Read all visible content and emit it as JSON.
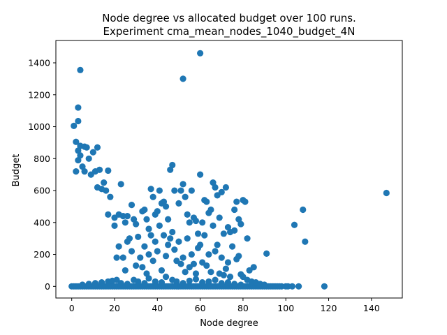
{
  "chart_data": {
    "type": "scatter",
    "title": "Node degree vs allocated budget over 100 runs.",
    "subtitle": "Experiment cma_mean_nodes_1040_budget_4N",
    "xlabel": "Node degree",
    "ylabel": "Budget",
    "xlim": [
      -7.4,
      154.4
    ],
    "ylim": [
      -73,
      1540
    ],
    "xticks": [
      0,
      20,
      40,
      60,
      80,
      100,
      120,
      140
    ],
    "yticks": [
      0,
      200,
      400,
      600,
      800,
      1000,
      1200,
      1400
    ],
    "grid": false,
    "legend": "none",
    "marker_color": "#1f77b4",
    "series": [
      {
        "points": [
          [
            0,
            0
          ],
          [
            1,
            0
          ],
          [
            2,
            0
          ],
          [
            3,
            0
          ],
          [
            4,
            0
          ],
          [
            5,
            0
          ],
          [
            6,
            0
          ],
          [
            7,
            0
          ],
          [
            8,
            0
          ],
          [
            9,
            0
          ],
          [
            10,
            0
          ],
          [
            11,
            0
          ],
          [
            12,
            0
          ],
          [
            13,
            0
          ],
          [
            14,
            0
          ],
          [
            15,
            0
          ],
          [
            16,
            0
          ],
          [
            17,
            0
          ],
          [
            18,
            0
          ],
          [
            19,
            0
          ],
          [
            20,
            0
          ],
          [
            21,
            0
          ],
          [
            22,
            0
          ],
          [
            23,
            0
          ],
          [
            24,
            0
          ],
          [
            25,
            0
          ],
          [
            26,
            0
          ],
          [
            27,
            0
          ],
          [
            28,
            0
          ],
          [
            29,
            0
          ],
          [
            30,
            0
          ],
          [
            31,
            0
          ],
          [
            32,
            0
          ],
          [
            33,
            0
          ],
          [
            34,
            0
          ],
          [
            35,
            0
          ],
          [
            36,
            0
          ],
          [
            37,
            0
          ],
          [
            38,
            0
          ],
          [
            39,
            0
          ],
          [
            40,
            0
          ],
          [
            41,
            0
          ],
          [
            42,
            0
          ],
          [
            43,
            0
          ],
          [
            44,
            0
          ],
          [
            45,
            0
          ],
          [
            46,
            0
          ],
          [
            47,
            0
          ],
          [
            48,
            0
          ],
          [
            49,
            0
          ],
          [
            50,
            0
          ],
          [
            51,
            0
          ],
          [
            52,
            0
          ],
          [
            53,
            0
          ],
          [
            54,
            0
          ],
          [
            55,
            0
          ],
          [
            56,
            0
          ],
          [
            57,
            0
          ],
          [
            58,
            0
          ],
          [
            59,
            0
          ],
          [
            60,
            0
          ],
          [
            61,
            0
          ],
          [
            62,
            0
          ],
          [
            63,
            0
          ],
          [
            64,
            0
          ],
          [
            65,
            0
          ],
          [
            66,
            0
          ],
          [
            67,
            0
          ],
          [
            68,
            0
          ],
          [
            69,
            0
          ],
          [
            70,
            0
          ],
          [
            71,
            0
          ],
          [
            72,
            0
          ],
          [
            73,
            0
          ],
          [
            74,
            0
          ],
          [
            75,
            0
          ],
          [
            76,
            0
          ],
          [
            77,
            0
          ],
          [
            78,
            0
          ],
          [
            79,
            0
          ],
          [
            80,
            0
          ],
          [
            81,
            0
          ],
          [
            82,
            0
          ],
          [
            83,
            0
          ],
          [
            84,
            0
          ],
          [
            85,
            0
          ],
          [
            86,
            0
          ],
          [
            87,
            0
          ],
          [
            88,
            0
          ],
          [
            89,
            0
          ],
          [
            90,
            0
          ],
          [
            91,
            0
          ],
          [
            92,
            0
          ],
          [
            93,
            0
          ],
          [
            94,
            0
          ],
          [
            95,
            0
          ],
          [
            96,
            0
          ],
          [
            97,
            0
          ],
          [
            98,
            0
          ],
          [
            100,
            0
          ],
          [
            101,
            0
          ],
          [
            103,
            0
          ],
          [
            106,
            0
          ],
          [
            118,
            0
          ],
          [
            1,
            1005
          ],
          [
            2,
            905
          ],
          [
            3,
            1035
          ],
          [
            3,
            1120
          ],
          [
            4,
            1355
          ],
          [
            4,
            880
          ],
          [
            6,
            875
          ],
          [
            7,
            870
          ],
          [
            10,
            840
          ],
          [
            12,
            870
          ],
          [
            3,
            850
          ],
          [
            3,
            790
          ],
          [
            5,
            750
          ],
          [
            8,
            800
          ],
          [
            4,
            820
          ],
          [
            2,
            720
          ],
          [
            6,
            720
          ],
          [
            9,
            700
          ],
          [
            11,
            720
          ],
          [
            13,
            730
          ],
          [
            17,
            725
          ],
          [
            15,
            650
          ],
          [
            14,
            610
          ],
          [
            12,
            620
          ],
          [
            16,
            600
          ],
          [
            18,
            560
          ],
          [
            17,
            450
          ],
          [
            20,
            430
          ],
          [
            23,
            640
          ],
          [
            22,
            450
          ],
          [
            24,
            440
          ],
          [
            25,
            400
          ],
          [
            26,
            440
          ],
          [
            28,
            510
          ],
          [
            29,
            420
          ],
          [
            27,
            300
          ],
          [
            30,
            390
          ],
          [
            31,
            310
          ],
          [
            33,
            470
          ],
          [
            34,
            480
          ],
          [
            35,
            420
          ],
          [
            36,
            360
          ],
          [
            37,
            610
          ],
          [
            38,
            560
          ],
          [
            39,
            450
          ],
          [
            40,
            470
          ],
          [
            41,
            600
          ],
          [
            42,
            520
          ],
          [
            43,
            530
          ],
          [
            44,
            500
          ],
          [
            45,
            420
          ],
          [
            46,
            730
          ],
          [
            47,
            760
          ],
          [
            48,
            600
          ],
          [
            50,
            520
          ],
          [
            51,
            600
          ],
          [
            52,
            640
          ],
          [
            53,
            560
          ],
          [
            54,
            450
          ],
          [
            55,
            400
          ],
          [
            56,
            600
          ],
          [
            57,
            430
          ],
          [
            58,
            410
          ],
          [
            59,
            330
          ],
          [
            60,
            700
          ],
          [
            60,
            260
          ],
          [
            61,
            400
          ],
          [
            62,
            540
          ],
          [
            63,
            530
          ],
          [
            64,
            460
          ],
          [
            65,
            480
          ],
          [
            66,
            650
          ],
          [
            67,
            620
          ],
          [
            68,
            570
          ],
          [
            69,
            430
          ],
          [
            70,
            590
          ],
          [
            71,
            330
          ],
          [
            72,
            620
          ],
          [
            73,
            370
          ],
          [
            74,
            340
          ],
          [
            75,
            250
          ],
          [
            76,
            480
          ],
          [
            77,
            530
          ],
          [
            78,
            420
          ],
          [
            79,
            390
          ],
          [
            80,
            540
          ],
          [
            81,
            530
          ],
          [
            82,
            300
          ],
          [
            83,
            100
          ],
          [
            85,
            120
          ],
          [
            91,
            205
          ],
          [
            104,
            385
          ],
          [
            108,
            480
          ],
          [
            109,
            280
          ],
          [
            147,
            585
          ],
          [
            52,
            1300
          ],
          [
            60,
            1460
          ],
          [
            20,
            380
          ],
          [
            21,
            180
          ],
          [
            22,
            250
          ],
          [
            24,
            180
          ],
          [
            25,
            100
          ],
          [
            26,
            280
          ],
          [
            28,
            220
          ],
          [
            30,
            130
          ],
          [
            32,
            180
          ],
          [
            33,
            120
          ],
          [
            34,
            250
          ],
          [
            35,
            80
          ],
          [
            36,
            200
          ],
          [
            37,
            320
          ],
          [
            38,
            160
          ],
          [
            39,
            280
          ],
          [
            40,
            220
          ],
          [
            41,
            380
          ],
          [
            42,
            100
          ],
          [
            43,
            320
          ],
          [
            44,
            190
          ],
          [
            45,
            260
          ],
          [
            46,
            300
          ],
          [
            47,
            340
          ],
          [
            48,
            230
          ],
          [
            49,
            160
          ],
          [
            50,
            280
          ],
          [
            51,
            140
          ],
          [
            52,
            180
          ],
          [
            53,
            90
          ],
          [
            54,
            300
          ],
          [
            55,
            120
          ],
          [
            56,
            200
          ],
          [
            57,
            140
          ],
          [
            58,
            80
          ],
          [
            59,
            240
          ],
          [
            61,
            150
          ],
          [
            62,
            320
          ],
          [
            63,
            130
          ],
          [
            64,
            200
          ],
          [
            65,
            90
          ],
          [
            66,
            380
          ],
          [
            67,
            220
          ],
          [
            68,
            260
          ],
          [
            69,
            80
          ],
          [
            70,
            180
          ],
          [
            71,
            70
          ],
          [
            72,
            110
          ],
          [
            73,
            150
          ],
          [
            74,
            60
          ],
          [
            76,
            350
          ],
          [
            77,
            170
          ],
          [
            78,
            190
          ],
          [
            79,
            75
          ],
          [
            80,
            60
          ],
          [
            82,
            40
          ],
          [
            84,
            30
          ],
          [
            86,
            25
          ],
          [
            88,
            15
          ],
          [
            90,
            10
          ],
          [
            5,
            10
          ],
          [
            8,
            15
          ],
          [
            11,
            20
          ],
          [
            14,
            25
          ],
          [
            17,
            30
          ],
          [
            19,
            35
          ],
          [
            21,
            40
          ],
          [
            23,
            20
          ],
          [
            26,
            15
          ],
          [
            29,
            40
          ],
          [
            31,
            30
          ],
          [
            34,
            20
          ],
          [
            36,
            50
          ],
          [
            39,
            30
          ],
          [
            42,
            25
          ],
          [
            44,
            60
          ],
          [
            47,
            40
          ],
          [
            49,
            30
          ],
          [
            52,
            20
          ],
          [
            55,
            35
          ],
          [
            58,
            45
          ],
          [
            61,
            25
          ],
          [
            64,
            30
          ],
          [
            67,
            40
          ],
          [
            70,
            20
          ],
          [
            73,
            25
          ],
          [
            76,
            15
          ],
          [
            79,
            10
          ]
        ]
      }
    ]
  }
}
